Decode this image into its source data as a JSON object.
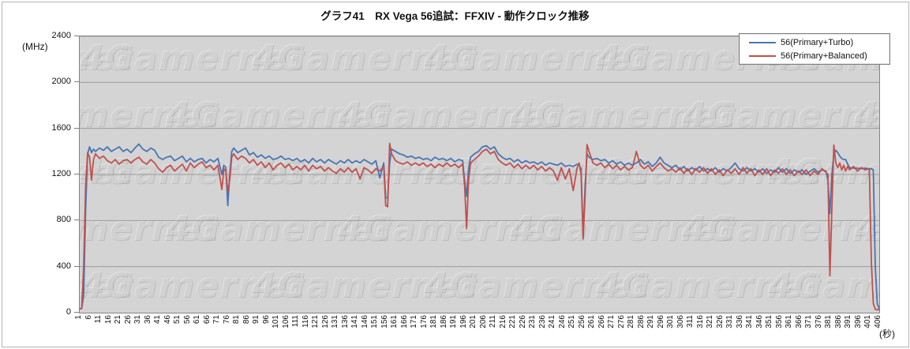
{
  "page": {
    "title": "グラフ41　RX Vega 56追試：FFXIV - 動作クロック推移"
  },
  "chart_data": {
    "type": "line",
    "title": "グラフ41　RX Vega 56追試：FFXIV - 動作クロック推移",
    "watermark": "4Gamernet",
    "grid": true,
    "legend": {
      "position": "top-right",
      "items": [
        {
          "label": "56(Primary+Turbo)",
          "color": "#4875B4"
        },
        {
          "label": "56(Primary+Balanced)",
          "color": "#C0504D"
        }
      ]
    },
    "y_axis": {
      "unit_label": "(MHz)",
      "min": 0,
      "max": 2400,
      "tick_step": 400,
      "ticks": [
        0,
        400,
        800,
        1200,
        1600,
        2000,
        2400
      ]
    },
    "x_axis": {
      "unit_label": "(秒)",
      "min": 1,
      "max": 406,
      "tick_step": 5,
      "ticks": [
        1,
        6,
        11,
        16,
        21,
        26,
        31,
        36,
        41,
        46,
        51,
        56,
        61,
        66,
        71,
        76,
        81,
        86,
        91,
        96,
        101,
        106,
        111,
        116,
        121,
        126,
        131,
        136,
        141,
        146,
        151,
        156,
        161,
        166,
        171,
        176,
        181,
        186,
        191,
        196,
        201,
        206,
        211,
        216,
        221,
        226,
        231,
        236,
        241,
        246,
        251,
        256,
        261,
        266,
        271,
        276,
        281,
        286,
        291,
        296,
        301,
        306,
        311,
        316,
        321,
        326,
        331,
        336,
        341,
        346,
        351,
        356,
        361,
        366,
        371,
        376,
        381,
        386,
        391,
        396,
        401,
        406
      ]
    },
    "x": [
      1,
      2,
      3,
      4,
      5,
      6,
      7,
      8,
      9,
      11,
      13,
      15,
      17,
      19,
      21,
      23,
      25,
      27,
      29,
      31,
      33,
      35,
      37,
      39,
      41,
      43,
      45,
      47,
      49,
      51,
      53,
      55,
      57,
      59,
      61,
      63,
      65,
      67,
      69,
      71,
      73,
      74,
      75,
      76,
      77,
      78,
      79,
      81,
      83,
      85,
      87,
      89,
      91,
      93,
      95,
      97,
      99,
      101,
      103,
      105,
      107,
      109,
      111,
      113,
      115,
      117,
      119,
      121,
      123,
      125,
      127,
      129,
      131,
      133,
      135,
      137,
      139,
      141,
      143,
      145,
      147,
      149,
      151,
      153,
      155,
      156,
      157,
      158,
      159,
      161,
      163,
      165,
      167,
      169,
      171,
      173,
      175,
      177,
      179,
      181,
      183,
      185,
      187,
      189,
      191,
      193,
      195,
      196,
      197,
      198,
      199,
      201,
      203,
      205,
      207,
      209,
      211,
      213,
      215,
      217,
      219,
      221,
      223,
      225,
      227,
      229,
      231,
      233,
      235,
      237,
      239,
      241,
      243,
      245,
      247,
      249,
      251,
      253,
      254,
      255,
      256,
      257,
      258,
      259,
      261,
      263,
      265,
      267,
      269,
      271,
      273,
      275,
      277,
      279,
      281,
      283,
      285,
      287,
      289,
      291,
      293,
      295,
      297,
      299,
      301,
      303,
      305,
      307,
      309,
      311,
      313,
      315,
      317,
      319,
      321,
      323,
      325,
      327,
      329,
      331,
      333,
      335,
      337,
      339,
      341,
      343,
      345,
      347,
      349,
      351,
      353,
      355,
      357,
      359,
      361,
      363,
      365,
      367,
      369,
      371,
      373,
      375,
      377,
      379,
      380,
      381,
      382,
      383,
      384,
      385,
      386,
      387,
      388,
      389,
      390,
      391,
      393,
      395,
      397,
      399,
      400,
      401,
      402,
      403,
      404,
      405,
      406
    ],
    "series": [
      {
        "name": "56(Primary+Turbo)",
        "color": "#4875B4",
        "values": [
          35,
          35,
          150,
          900,
          1380,
          1440,
          1390,
          1420,
          1400,
          1430,
          1410,
          1440,
          1400,
          1420,
          1440,
          1400,
          1420,
          1390,
          1430,
          1465,
          1420,
          1400,
          1430,
          1410,
          1350,
          1330,
          1350,
          1360,
          1320,
          1340,
          1360,
          1310,
          1340,
          1310,
          1330,
          1340,
          1300,
          1330,
          1310,
          1340,
          1200,
          1280,
          1260,
          930,
          1200,
          1400,
          1430,
          1390,
          1410,
          1430,
          1370,
          1390,
          1350,
          1370,
          1340,
          1360,
          1330,
          1340,
          1360,
          1330,
          1340,
          1320,
          1340,
          1310,
          1330,
          1300,
          1340,
          1310,
          1330,
          1300,
          1330,
          1310,
          1290,
          1320,
          1300,
          1330,
          1300,
          1320,
          1300,
          1330,
          1310,
          1290,
          1320,
          1170,
          1300,
          1000,
          995,
          1300,
          1420,
          1400,
          1380,
          1370,
          1350,
          1360,
          1340,
          1350,
          1330,
          1340,
          1320,
          1350,
          1330,
          1340,
          1320,
          1340,
          1310,
          1330,
          1320,
          1150,
          1010,
          1250,
          1350,
          1380,
          1400,
          1440,
          1450,
          1420,
          1440,
          1380,
          1350,
          1330,
          1340,
          1310,
          1330,
          1300,
          1320,
          1300,
          1310,
          1290,
          1310,
          1280,
          1300,
          1290,
          1280,
          1300,
          1270,
          1280,
          1270,
          1290,
          1280,
          1250,
          660,
          1100,
          1380,
          1350,
          1330,
          1340,
          1320,
          1330,
          1300,
          1320,
          1290,
          1310,
          1280,
          1300,
          1280,
          1300,
          1330,
          1290,
          1310,
          1270,
          1300,
          1350,
          1300,
          1280,
          1260,
          1280,
          1240,
          1270,
          1230,
          1260,
          1240,
          1270,
          1230,
          1250,
          1230,
          1260,
          1220,
          1250,
          1230,
          1260,
          1300,
          1250,
          1230,
          1260,
          1230,
          1250,
          1220,
          1250,
          1210,
          1240,
          1220,
          1260,
          1220,
          1250,
          1210,
          1240,
          1220,
          1240,
          1200,
          1230,
          1250,
          1220,
          1240,
          1230,
          1150,
          860,
          1200,
          1380,
          1410,
          1390,
          1360,
          1340,
          1330,
          1330,
          1290,
          1260,
          1255,
          1255,
          1250,
          1255,
          1250,
          1250,
          1250,
          1240,
          400,
          80,
          30
        ]
      },
      {
        "name": "56(Primary+Balanced)",
        "color": "#C0504D",
        "values": [
          30,
          40,
          400,
          1100,
          1390,
          1350,
          1150,
          1330,
          1380,
          1340,
          1360,
          1320,
          1300,
          1330,
          1290,
          1320,
          1330,
          1300,
          1330,
          1350,
          1310,
          1290,
          1330,
          1300,
          1250,
          1220,
          1260,
          1280,
          1230,
          1260,
          1290,
          1230,
          1300,
          1260,
          1290,
          1310,
          1260,
          1280,
          1240,
          1280,
          1070,
          1250,
          1230,
          1050,
          1150,
          1350,
          1380,
          1330,
          1360,
          1340,
          1300,
          1330,
          1280,
          1310,
          1260,
          1300,
          1240,
          1280,
          1300,
          1260,
          1290,
          1240,
          1270,
          1240,
          1280,
          1230,
          1280,
          1250,
          1270,
          1230,
          1260,
          1230,
          1210,
          1250,
          1220,
          1260,
          1220,
          1250,
          1160,
          1260,
          1240,
          1210,
          1250,
          1230,
          1270,
          930,
          920,
          1470,
          1380,
          1320,
          1300,
          1290,
          1310,
          1280,
          1300,
          1280,
          1300,
          1270,
          1290,
          1260,
          1290,
          1270,
          1300,
          1270,
          1290,
          1260,
          1290,
          1100,
          730,
          1150,
          1300,
          1330,
          1360,
          1400,
          1420,
          1380,
          1400,
          1330,
          1300,
          1280,
          1300,
          1260,
          1290,
          1250,
          1280,
          1250,
          1280,
          1240,
          1270,
          1230,
          1260,
          1230,
          1150,
          1260,
          1160,
          1250,
          1060,
          1260,
          1300,
          1200,
          640,
          1000,
          1460,
          1400,
          1300,
          1280,
          1300,
          1260,
          1290,
          1250,
          1280,
          1240,
          1270,
          1240,
          1260,
          1400,
          1280,
          1250,
          1280,
          1230,
          1270,
          1300,
          1260,
          1230,
          1250,
          1220,
          1260,
          1210,
          1250,
          1200,
          1250,
          1220,
          1260,
          1210,
          1250,
          1200,
          1240,
          1190,
          1240,
          1210,
          1250,
          1200,
          1260,
          1210,
          1250,
          1190,
          1240,
          1200,
          1250,
          1190,
          1240,
          1210,
          1250,
          1200,
          1240,
          1190,
          1230,
          1200,
          1240,
          1190,
          1230,
          1200,
          1250,
          1220,
          1200,
          320,
          900,
          1455,
          1300,
          1260,
          1300,
          1240,
          1280,
          1230,
          1270,
          1240,
          1270,
          1230,
          1260,
          1240,
          1250,
          1240,
          450,
          80,
          30,
          25,
          25
        ]
      }
    ]
  }
}
